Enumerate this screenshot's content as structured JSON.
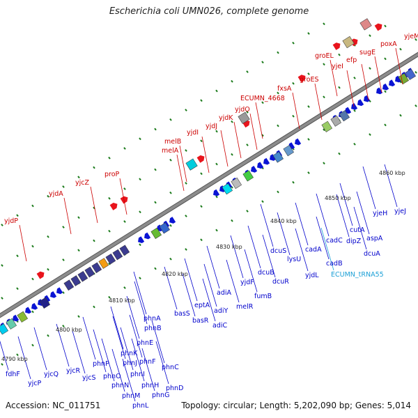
{
  "title": "Escherichia coli UMN026, complete genome",
  "footer": {
    "accession": "Accession: NC_011751",
    "summary": "Topology: circular; Length: 5,202,090 bp; Genes: 5,014"
  },
  "colors": {
    "upper_label": "#cc0000",
    "lower_label": "#0000cc",
    "rna_label": "#1a9fd6",
    "forward_gene": "#e8141c",
    "reverse_gene": "#0a14d4",
    "backbone": "#8c8c8c",
    "tick": "#1a7a1a"
  },
  "scale_labels": [
    "4790 kbp",
    "4800 kbp",
    "4810 kbp",
    "4820 kbp",
    "4830 kbp",
    "4840 kbp",
    "4850 kbp",
    "4860 kbp"
  ],
  "upper_genes": [
    "yjdP",
    "yjdA",
    "yjcZ",
    "proP",
    "melA",
    "melB",
    "yjdI",
    "yjdJ",
    "yjdK",
    "yjdO",
    "ECUMN_4668",
    "fxsA",
    "groES",
    "groEL",
    "yjeI",
    "efp",
    "sugE",
    "poxA",
    "yjeM"
  ],
  "lower_genes": [
    "fdhF",
    "yjcP",
    "yjcQ",
    "yjcR",
    "yjcS",
    "phnP",
    "phnO",
    "phnN",
    "phnM",
    "phnL",
    "phnK",
    "phnJ",
    "phnI",
    "phnH",
    "phnG",
    "phnF",
    "phnE",
    "phnD",
    "phnC",
    "phnB",
    "phnA",
    "basS",
    "basR",
    "eptA",
    "adiY",
    "adiC",
    "adiA",
    "melR",
    "yjdF",
    "fumB",
    "dcuB",
    "dcuR",
    "dcuS",
    "lysU",
    "yjdL",
    "cadA",
    "cadB",
    "cadC",
    "ECUMN_tRNA55",
    "dipZ",
    "cutA",
    "dcuA",
    "aspA",
    "yjeH",
    "yjeJ"
  ]
}
